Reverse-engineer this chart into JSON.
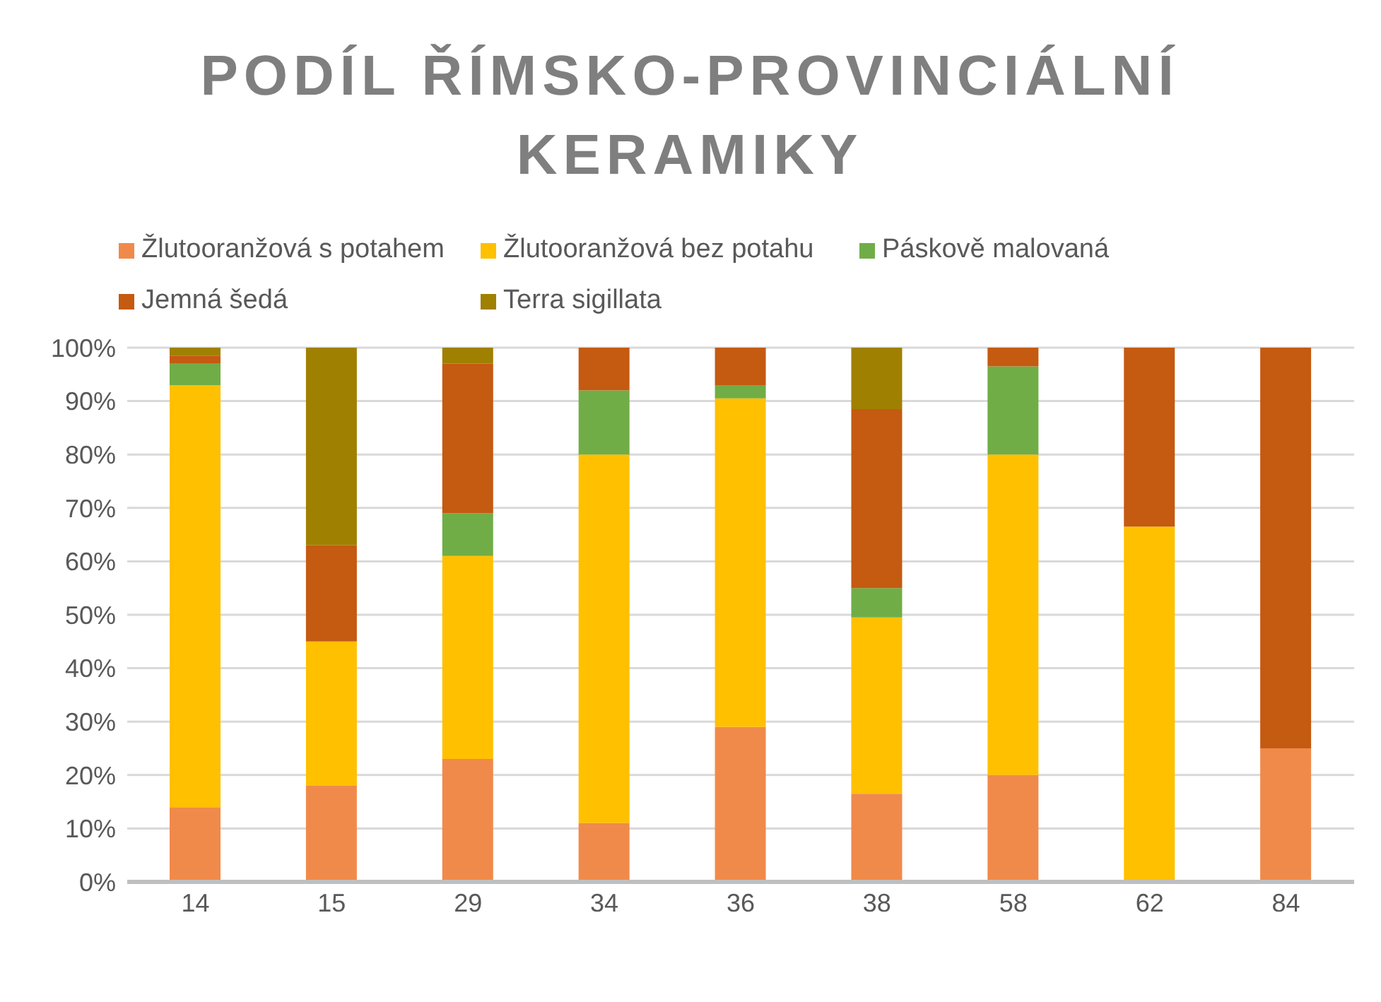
{
  "chart_data": {
    "type": "bar",
    "title": "PODÍL ŘÍMSKO-PROVINCIÁLNÍ KERAMIKY",
    "categories": [
      "14",
      "15",
      "29",
      "34",
      "36",
      "38",
      "58",
      "62",
      "84"
    ],
    "stacked": true,
    "series": [
      {
        "name": "Žlutooranžová s potahem",
        "color": "#f08a4b",
        "values": [
          14,
          18,
          23,
          11,
          29,
          16.5,
          20,
          0,
          25
        ]
      },
      {
        "name": "Žlutooranžová bez potahu",
        "color": "#ffc000",
        "values": [
          79,
          27,
          38,
          69,
          61.5,
          33,
          60,
          66.5,
          0
        ]
      },
      {
        "name": "Páskově malovaná",
        "color": "#70ad47",
        "values": [
          4,
          0,
          8,
          12,
          2.5,
          5.5,
          16.5,
          0,
          0
        ]
      },
      {
        "name": "Jemná šedá",
        "color": "#c55a11",
        "values": [
          1.5,
          18,
          28,
          8,
          7,
          33.5,
          3.5,
          33.5,
          75
        ]
      },
      {
        "name": "Terra sigillata",
        "color": "#a08000",
        "values": [
          1.5,
          37,
          3,
          0,
          0,
          11.5,
          0,
          0,
          0
        ]
      }
    ],
    "ylim": [
      0,
      100
    ],
    "yticks": [
      {
        "value": 0,
        "label": "0%"
      },
      {
        "value": 10,
        "label": "10%"
      },
      {
        "value": 20,
        "label": "20%"
      },
      {
        "value": 30,
        "label": "30%"
      },
      {
        "value": 40,
        "label": "40%"
      },
      {
        "value": 50,
        "label": "50%"
      },
      {
        "value": 60,
        "label": "60%"
      },
      {
        "value": 70,
        "label": "70%"
      },
      {
        "value": 80,
        "label": "80%"
      },
      {
        "value": 90,
        "label": "90%"
      },
      {
        "value": 100,
        "label": "100%"
      }
    ],
    "grid": "y",
    "legend": "top"
  }
}
